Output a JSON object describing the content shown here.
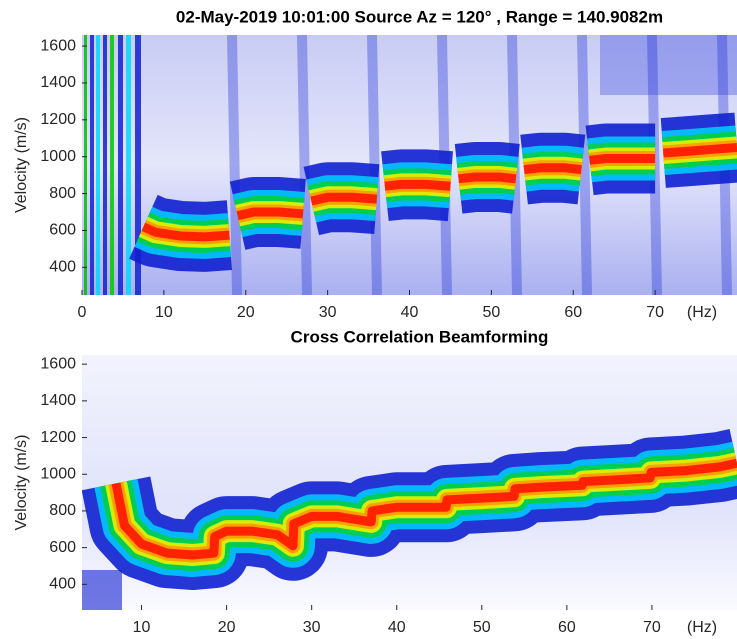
{
  "chart_data": [
    {
      "type": "line",
      "title": "02-May-2019 10:01:00 Source Az = 120° , Range = 140.9082m",
      "ylabel": "Velocity (m/s)",
      "xlabel": "(Hz)",
      "color": "#ff2200",
      "xlim": [
        0,
        80
      ],
      "ylim": [
        250,
        1660
      ],
      "xticks": [
        0,
        10,
        20,
        30,
        40,
        50,
        60,
        70
      ],
      "yticks": [
        400,
        600,
        800,
        1000,
        1200,
        1400,
        1600
      ],
      "x": [
        7.5,
        9,
        12,
        15,
        18,
        18.5,
        19,
        21,
        24,
        27,
        27.5,
        28,
        30,
        33,
        36,
        36.5,
        37,
        39,
        42,
        45,
        45.5,
        46,
        48,
        51,
        53,
        53.5,
        54,
        56,
        59,
        61,
        61.5,
        62,
        64,
        67,
        70,
        70.5,
        71,
        74,
        77,
        80
      ],
      "values": [
        620,
        590,
        570,
        565,
        575,
        null,
        680,
        700,
        700,
        690,
        null,
        760,
        780,
        780,
        770,
        null,
        840,
        850,
        850,
        840,
        null,
        880,
        890,
        890,
        880,
        null,
        930,
        940,
        940,
        930,
        null,
        980,
        990,
        990,
        990,
        null,
        1020,
        1030,
        1040,
        1050
      ]
    },
    {
      "type": "line",
      "title": "Cross Correlation Beamforming",
      "ylabel": "Velocity (m/s)",
      "xlabel": "(Hz)",
      "color": "#ff2200",
      "xlim": [
        3,
        80
      ],
      "ylim": [
        260,
        1650
      ],
      "xticks": [
        10,
        20,
        30,
        40,
        50,
        60,
        70
      ],
      "yticks": [
        400,
        600,
        800,
        1000,
        1200,
        1400,
        1600
      ],
      "x": [
        7,
        8,
        10,
        13,
        16,
        18.5,
        18.6,
        20,
        23,
        26,
        27.8,
        27.9,
        30,
        33,
        37,
        37.1,
        40,
        43,
        45.8,
        45.9,
        50,
        53.8,
        53.9,
        57,
        61.8,
        61.9,
        66,
        69.8,
        69.9,
        74,
        78,
        80
      ],
      "values": [
        950,
        720,
        620,
        570,
        560,
        570,
        660,
        690,
        690,
        670,
        610,
        730,
        770,
        770,
        740,
        800,
        820,
        820,
        820,
        860,
        870,
        880,
        920,
        930,
        940,
        960,
        970,
        980,
        1010,
        1020,
        1040,
        1060
      ]
    }
  ]
}
